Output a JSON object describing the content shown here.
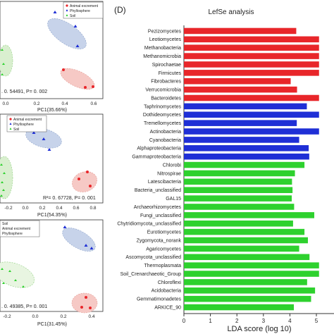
{
  "colors": {
    "animal": "#e8262a",
    "phyllosphere": "#1f2fd6",
    "soil": "#2ed12e",
    "animal_ellipse": "#f6c9c5",
    "phyllo_ellipse": "#c7d3ea",
    "soil_ellipse": "#d9efcf"
  },
  "left_panels": [
    {
      "legend": [
        "Animal excrement",
        "Phyllosphere",
        "Soil"
      ],
      "stat": ". 0. 54491, P= 0. 002",
      "xlabel": "PC1(35.66%)",
      "ticks": [
        "0.0",
        "0.2",
        "0.4",
        "0.6"
      ]
    },
    {
      "legend": [
        "Animal excrement",
        "Phyllosphere",
        "Soil"
      ],
      "stat": "R²= 0. 67728, P= 0. 001",
      "xlabel": "PC1(54.35%)",
      "ticks": [
        "-0.2",
        "0.0",
        "0.2",
        "0.4",
        "0.6",
        "0.8"
      ]
    },
    {
      "legend": [
        "Soil",
        "Animal excrement",
        "Phyllosphere"
      ],
      "stat": ". 0. 49385, P= 0. 001",
      "xlabel": "PC1(31.45%)",
      "ticks": [
        "-0.2",
        "0.0",
        "0.2",
        "0.4"
      ]
    }
  ],
  "chart_data": {
    "type": "bar",
    "panel_label": "(D)",
    "title": "LefSe analysis",
    "xlabel": "LDA score (log 10)",
    "xlim": [
      0,
      5
    ],
    "xticks": [
      "0",
      "1",
      "2",
      "3",
      "4",
      "5"
    ],
    "categories": [
      "Pezizomycetes",
      "Leotiomycetes",
      "Methanobacteria",
      "Methanomicrobia",
      "Spirochaetae",
      "Firmicutes",
      "Fibrobacteres",
      "Verrucomicrobia",
      "Bacteroidetes",
      "Taphrinomycetes",
      "Dothideomycetes",
      "Tremellomycetes",
      "Actinobacteria",
      "Cyanobacteria",
      "Alphaproteobacteria",
      "Gammaproteobacteria",
      "Chlorobi",
      "Nitrospirae",
      "Latescibacteria",
      "Bacteria_unclassified",
      "GAL15",
      "Archaeorhizomycetes",
      "Fungi_unclassified",
      "Chytridiomycota_unclassified",
      "Eurotiomycetes",
      "Zygomycota_norank",
      "Agaricomycetes",
      "Ascomycota_unclassified",
      "Thermoplasmata",
      "Soil_Crenarchaeotic_Group",
      "Chloroflexi",
      "Acidobacteria",
      "Gemmatimonadetes",
      "ARKICE_90"
    ],
    "values": [
      4.24,
      5.1,
      5.1,
      5.1,
      5.1,
      5.1,
      4.03,
      4.27,
      5.1,
      4.64,
      5.1,
      4.26,
      5.1,
      4.35,
      4.71,
      4.73,
      4.55,
      4.19,
      4.08,
      4.1,
      4.07,
      4.16,
      4.92,
      4.12,
      4.55,
      4.68,
      4.35,
      4.74,
      5.1,
      5.1,
      4.65,
      4.95,
      4.8,
      4.15
    ],
    "groups": [
      "animal",
      "animal",
      "animal",
      "animal",
      "animal",
      "animal",
      "animal",
      "animal",
      "animal",
      "phyllosphere",
      "phyllosphere",
      "phyllosphere",
      "phyllosphere",
      "phyllosphere",
      "phyllosphere",
      "phyllosphere",
      "soil",
      "soil",
      "soil",
      "soil",
      "soil",
      "soil",
      "soil",
      "soil",
      "soil",
      "soil",
      "soil",
      "soil",
      "soil",
      "soil",
      "soil",
      "soil",
      "soil",
      "soil"
    ]
  }
}
